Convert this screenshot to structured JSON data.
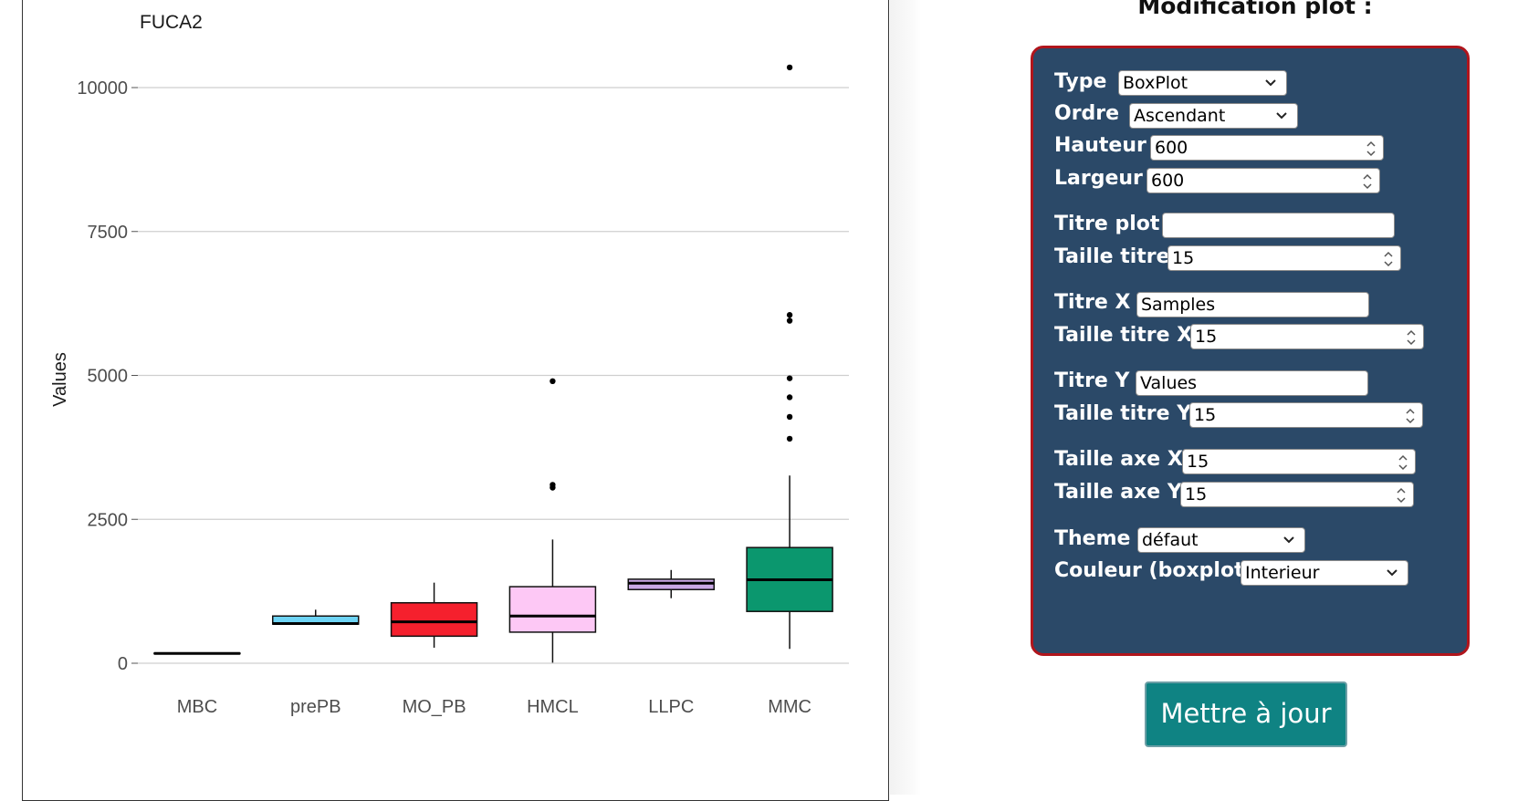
{
  "plot": {
    "title": "FUCA2",
    "ylabel": "Values",
    "xlabel": ""
  },
  "chart_data": {
    "type": "boxplot",
    "title": "FUCA2",
    "xlabel": "",
    "ylabel": "Values",
    "ylim": [
      -250,
      10800
    ],
    "y_ticks": [
      0,
      2500,
      5000,
      7500,
      10000
    ],
    "y_tick_labels": [
      "0",
      "2500",
      "5000",
      "7500",
      "10000"
    ],
    "grid": true,
    "categories": [
      "MBC",
      "prePB",
      "MO_PB",
      "HMCL",
      "LLPC",
      "MMC"
    ],
    "boxes": [
      {
        "category": "MBC",
        "color": "#000000",
        "whisker_low": 165,
        "q1": 165,
        "median": 170,
        "q3": 175,
        "whisker_high": 175,
        "outliers": []
      },
      {
        "category": "prePB",
        "color": "#6ed4f5",
        "whisker_low": 680,
        "q1": 680,
        "median": 690,
        "q3": 820,
        "whisker_high": 930,
        "outliers": []
      },
      {
        "category": "MO_PB",
        "color": "#f5202d",
        "whisker_low": 270,
        "q1": 470,
        "median": 720,
        "q3": 1050,
        "whisker_high": 1400,
        "outliers": []
      },
      {
        "category": "HMCL",
        "color": "#fdc8f5",
        "whisker_low": 10,
        "q1": 540,
        "median": 820,
        "q3": 1330,
        "whisker_high": 2150,
        "outliers": [
          3050,
          3100,
          4900
        ]
      },
      {
        "category": "LLPC",
        "color": "#c9a8e5",
        "whisker_low": 1130,
        "q1": 1280,
        "median": 1390,
        "q3": 1460,
        "whisker_high": 1620,
        "outliers": []
      },
      {
        "category": "MMC",
        "color": "#0b976e",
        "whisker_low": 250,
        "q1": 900,
        "median": 1450,
        "q3": 2010,
        "whisker_high": 3260,
        "outliers": [
          3900,
          4280,
          4620,
          4950,
          5950,
          6050,
          10350
        ]
      }
    ]
  },
  "panel": {
    "heading": "Modification plot :",
    "type": {
      "label": "Type",
      "value": "BoxPlot"
    },
    "ordre": {
      "label": "Ordre",
      "value": "Ascendant"
    },
    "hauteur": {
      "label": "Hauteur",
      "value": "600"
    },
    "largeur": {
      "label": "Largeur",
      "value": "600"
    },
    "titre_plot": {
      "label": "Titre plot",
      "value": ""
    },
    "taille_titre": {
      "label": "Taille titre",
      "value": "15"
    },
    "titre_x": {
      "label": "Titre X",
      "value": "Samples"
    },
    "taille_titre_x": {
      "label": "Taille titre X",
      "value": "15"
    },
    "titre_y": {
      "label": "Titre Y",
      "value": "Values"
    },
    "taille_titre_y": {
      "label": "Taille titre Y",
      "value": "15"
    },
    "taille_axe_x": {
      "label": "Taille axe X",
      "value": "15"
    },
    "taille_axe_y": {
      "label": "Taille axe Y",
      "value": "15"
    },
    "theme": {
      "label": "Theme",
      "value": "défaut"
    },
    "couleur": {
      "label": "Couleur (boxplot)",
      "value": "Interieur"
    },
    "update_label": "Mettre à jour"
  },
  "colors": {
    "panel_bg": "#2b4968",
    "panel_border": "#b0151c",
    "button_bg": "#0f8383"
  }
}
